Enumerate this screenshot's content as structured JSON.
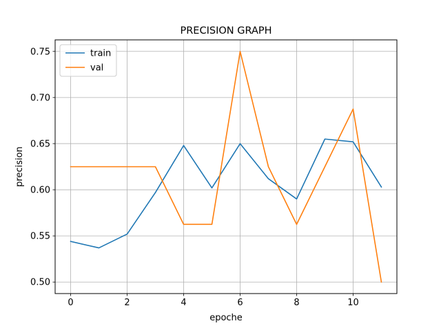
{
  "chart_data": {
    "type": "line",
    "title": "PRECISION GRAPH",
    "xlabel": "epoche",
    "ylabel": "precision",
    "xlim": [
      -0.55,
      11.55
    ],
    "ylim": [
      0.4875,
      0.7625
    ],
    "xticks": [
      0,
      2,
      4,
      6,
      8,
      10
    ],
    "xtick_labels": [
      "0",
      "2",
      "4",
      "6",
      "8",
      "10"
    ],
    "yticks": [
      0.5,
      0.55,
      0.6,
      0.65,
      0.7,
      0.75
    ],
    "ytick_labels": [
      "0.50",
      "0.55",
      "0.60",
      "0.65",
      "0.70",
      "0.75"
    ],
    "grid": true,
    "legend_position": "top-left",
    "x": [
      0,
      1,
      2,
      3,
      4,
      5,
      6,
      7,
      8,
      9,
      10,
      11
    ],
    "series": [
      {
        "name": "train",
        "color": "#1f77b4",
        "values": [
          0.544,
          0.537,
          0.552,
          0.597,
          0.648,
          0.602,
          0.65,
          0.612,
          0.59,
          0.655,
          0.652,
          0.603
        ]
      },
      {
        "name": "val",
        "color": "#ff7f0e",
        "values": [
          0.625,
          0.625,
          0.625,
          0.625,
          0.5625,
          0.5625,
          0.75,
          0.625,
          0.5625,
          0.625,
          0.6875,
          0.5
        ]
      }
    ]
  }
}
